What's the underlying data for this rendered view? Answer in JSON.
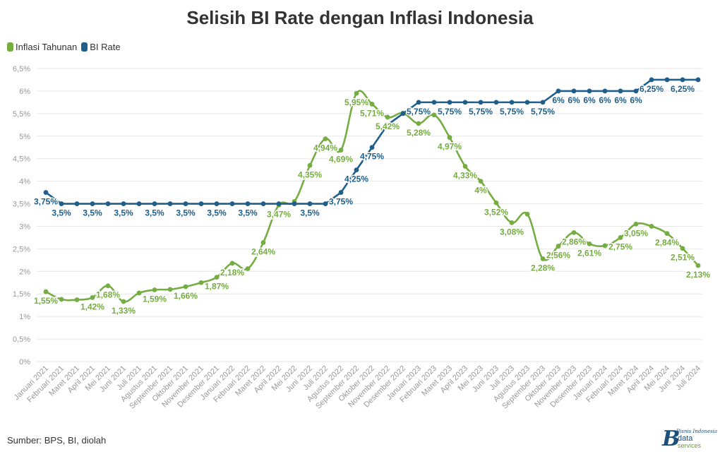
{
  "title": "Selisih BI Rate dengan Inflasi Indonesia",
  "source": "Sumber: BPS, BI, diolah",
  "logo": {
    "line1": "Bisnis Indonesia",
    "line2": "data",
    "line3": "services"
  },
  "colors": {
    "inflasi": "#75ad42",
    "bi_rate": "#1f5f8b",
    "grid": "#e6e6e6",
    "axis_text": "#999999"
  },
  "legend": [
    {
      "name": "Inflasi Tahunan",
      "color": "#75ad42"
    },
    {
      "name": "BI Rate",
      "color": "#1f5f8b"
    }
  ],
  "chart_data": {
    "type": "line",
    "title": "Selisih BI Rate dengan Inflasi Indonesia",
    "xlabel": "",
    "ylabel": "",
    "ylim": [
      0,
      6.5
    ],
    "yticks": [
      "0%",
      "0,5%",
      "1%",
      "1,5%",
      "2%",
      "2,5%",
      "3%",
      "3,5%",
      "4%",
      "4,5%",
      "5%",
      "5,5%",
      "6%",
      "6,5%"
    ],
    "grid": true,
    "legend_position": "top-left",
    "categories": [
      "Januari 2021",
      "Februari 2021",
      "Maret 2021",
      "April 2021",
      "Mei 2021",
      "Juni 2021",
      "Juli 2021",
      "Agustus 2021",
      "September 2021",
      "Oktober 2021",
      "November 2021",
      "Desember 2021",
      "Januari 2022",
      "Februari 2022",
      "Maret 2022",
      "April 2022",
      "Mei 2022",
      "Juni 2022",
      "Juli 2022",
      "Agustus 2022",
      "September 2022",
      "Oktober 2022",
      "November 2022",
      "Desember 2022",
      "Januari 2023",
      "Februari 2023",
      "Maret 2023",
      "April 2023",
      "Mei 2023",
      "Juni 2023",
      "Juli 2023",
      "Agustus 2023",
      "September 2023",
      "Oktober 2023",
      "November 2023",
      "Desember 2023",
      "Januari 2024",
      "Februari 2024",
      "Maret 2024",
      "April 2024",
      "Mei 2024",
      "Juni 2024",
      "Juli 2024"
    ],
    "series": [
      {
        "name": "Inflasi Tahunan",
        "values": [
          1.55,
          1.38,
          1.37,
          1.42,
          1.68,
          1.33,
          1.52,
          1.59,
          1.6,
          1.66,
          1.75,
          1.87,
          2.18,
          2.06,
          2.64,
          3.47,
          3.55,
          4.35,
          4.94,
          4.69,
          5.95,
          5.71,
          5.42,
          5.51,
          5.28,
          5.47,
          4.97,
          4.33,
          4.0,
          3.52,
          3.08,
          3.27,
          2.28,
          2.56,
          2.86,
          2.61,
          2.57,
          2.75,
          3.05,
          3.0,
          2.84,
          2.51,
          2.13
        ],
        "labels": [
          "1,55%",
          "",
          "",
          "1,42%",
          "1,68%",
          "1,33%",
          "",
          "1,59%",
          "",
          "1,66%",
          "",
          "1,87%",
          "2,18%",
          "",
          "2,64%",
          "3,47%",
          "",
          "4,35%",
          "4,94%",
          "4,69%",
          "5,95%",
          "5,71%",
          "5,42%",
          "",
          "5,28%",
          "",
          "4,97%",
          "4,33%",
          "4%",
          "3,52%",
          "3,08%",
          "",
          "2,28%",
          "2,56%",
          "2,86%",
          "2,61%",
          "",
          "2,75%",
          "3,05%",
          "",
          "2,84%",
          "2,51%",
          "2,13%"
        ]
      },
      {
        "name": "BI Rate",
        "values": [
          3.75,
          3.5,
          3.5,
          3.5,
          3.5,
          3.5,
          3.5,
          3.5,
          3.5,
          3.5,
          3.5,
          3.5,
          3.5,
          3.5,
          3.5,
          3.5,
          3.5,
          3.5,
          3.5,
          3.75,
          4.25,
          4.75,
          5.25,
          5.5,
          5.75,
          5.75,
          5.75,
          5.75,
          5.75,
          5.75,
          5.75,
          5.75,
          5.75,
          6.0,
          6.0,
          6.0,
          6.0,
          6.0,
          6.0,
          6.25,
          6.25,
          6.25,
          6.25
        ],
        "labels": [
          "3,75%",
          "3,5%",
          "",
          "3,5%",
          "",
          "3,5%",
          "",
          "3,5%",
          "",
          "3,5%",
          "",
          "3,5%",
          "",
          "3,5%",
          "",
          "",
          "",
          "3,5%",
          "",
          "3,75%",
          "4,25%",
          "4,75%",
          "",
          "",
          "5,75%",
          "",
          "5,75%",
          "",
          "5,75%",
          "",
          "5,75%",
          "",
          "5,75%",
          "6%",
          "6%",
          "6%",
          "6%",
          "6%",
          "6%",
          "6,25%",
          "",
          "6,25%",
          ""
        ]
      }
    ]
  }
}
